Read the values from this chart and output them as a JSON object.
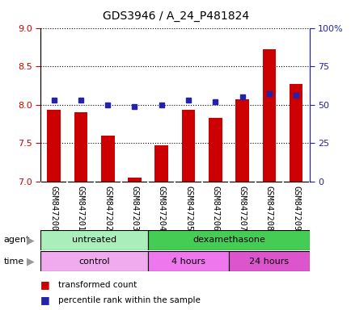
{
  "title": "GDS3946 / A_24_P481824",
  "samples": [
    "GSM847200",
    "GSM847201",
    "GSM847202",
    "GSM847203",
    "GSM847204",
    "GSM847205",
    "GSM847206",
    "GSM847207",
    "GSM847208",
    "GSM847209"
  ],
  "transformed_count": [
    7.93,
    7.9,
    7.6,
    7.05,
    7.47,
    7.93,
    7.83,
    8.07,
    8.72,
    8.27
  ],
  "percentile_rank": [
    53,
    53,
    50,
    49,
    50,
    53,
    52,
    55,
    57,
    56
  ],
  "ylim_left": [
    7.0,
    9.0
  ],
  "ylim_right": [
    0,
    100
  ],
  "yticks_left": [
    7.0,
    7.5,
    8.0,
    8.5,
    9.0
  ],
  "yticks_right": [
    0,
    25,
    50,
    75,
    100
  ],
  "ytick_labels_right": [
    "0",
    "25",
    "50",
    "75",
    "100%"
  ],
  "bar_color": "#CC0000",
  "dot_color": "#2222AA",
  "bar_bottom": 7.0,
  "agent_groups": [
    {
      "label": "untreated",
      "start": 0,
      "end": 4,
      "color": "#AAEEBB"
    },
    {
      "label": "dexamethasone",
      "start": 4,
      "end": 10,
      "color": "#44CC55"
    }
  ],
  "time_groups": [
    {
      "label": "control",
      "start": 0,
      "end": 4,
      "color": "#F0AAEE"
    },
    {
      "label": "4 hours",
      "start": 4,
      "end": 7,
      "color": "#EE77EE"
    },
    {
      "label": "24 hours",
      "start": 7,
      "end": 10,
      "color": "#DD55CC"
    }
  ],
  "legend_bar_color": "#CC0000",
  "legend_dot_color": "#2222AA",
  "legend_bar_label": "transformed count",
  "legend_dot_label": "percentile rank within the sample",
  "tick_label_color_left": "#CC0000",
  "tick_label_color_right": "#2222AA",
  "xtick_bg_color": "#CCCCCC",
  "plot_bg_color": "#FFFFFF",
  "border_color": "#888888"
}
